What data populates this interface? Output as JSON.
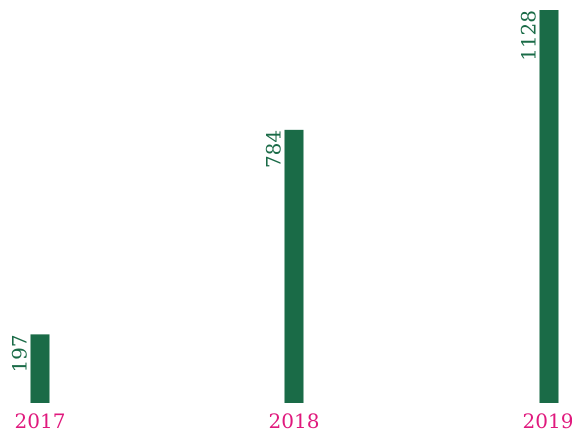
{
  "chart_data": {
    "type": "bar",
    "categories": [
      "2017",
      "2018",
      "2019"
    ],
    "values": [
      197,
      784,
      1128
    ],
    "value_labels": [
      "197",
      "784",
      "1128"
    ],
    "ylim": [
      0,
      1128
    ],
    "grid": false,
    "legend": "none",
    "colors": {
      "bar": "#1a6b47",
      "value_label": "#1a6b47",
      "category_label": "#e0197d"
    }
  }
}
